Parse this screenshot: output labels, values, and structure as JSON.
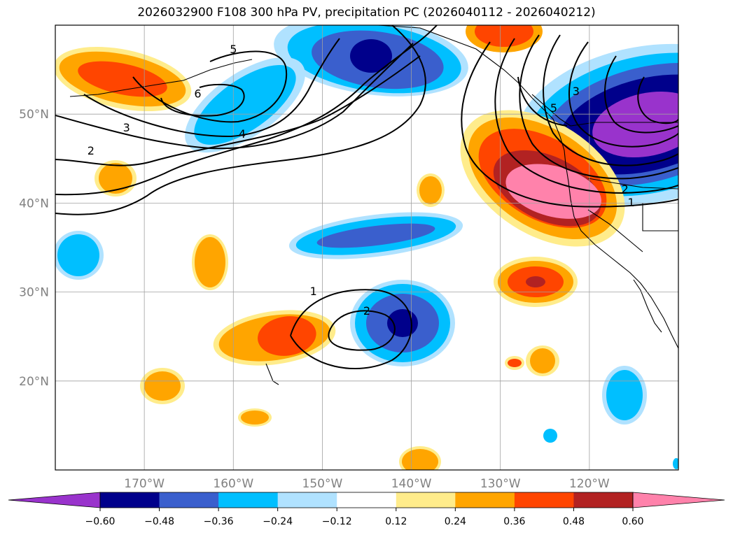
{
  "chart_data": {
    "type": "contour-map",
    "title": "2026032900 F108 300 hPa PV, precipitation PC (2026040112 - 2026040212)",
    "projection": "PlateCarree",
    "extent": {
      "lon_min": -180,
      "lon_max": -110,
      "lat_min": 10,
      "lat_max": 60
    },
    "lon_ticks": [
      {
        "lon": -170,
        "label": "170°W"
      },
      {
        "lon": -160,
        "label": "160°W"
      },
      {
        "lon": -150,
        "label": "150°W"
      },
      {
        "lon": -140,
        "label": "140°W"
      },
      {
        "lon": -130,
        "label": "130°W"
      },
      {
        "lon": -120,
        "label": "120°W"
      }
    ],
    "lat_ticks": [
      {
        "lat": 50,
        "label": "50°N"
      },
      {
        "lat": 40,
        "label": "40°N"
      },
      {
        "lat": 30,
        "label": "30°N"
      },
      {
        "lat": 20,
        "label": "20°N"
      }
    ],
    "grid": true,
    "filled_field": "precipitation PC",
    "contour_field": "300 hPa PV",
    "contour_labels": [
      {
        "text": "1",
        "lon": -151,
        "lat": 30.0
      },
      {
        "text": "2",
        "lon": -145,
        "lat": 27.8
      },
      {
        "text": "1",
        "lon": -115.3,
        "lat": 40.0
      },
      {
        "text": "2",
        "lon": -116,
        "lat": 41.5
      },
      {
        "text": "3",
        "lon": -121.5,
        "lat": 52.5
      },
      {
        "text": "5",
        "lon": -124,
        "lat": 50.6
      },
      {
        "text": "2",
        "lon": -176,
        "lat": 45.8
      },
      {
        "text": "3",
        "lon": -172,
        "lat": 48.4
      },
      {
        "text": "4",
        "lon": -159,
        "lat": 47.7
      },
      {
        "text": "5",
        "lon": -160,
        "lat": 57.2
      },
      {
        "text": "6",
        "lon": -164,
        "lat": 52.2
      }
    ],
    "colorbar": {
      "ticks": [
        "−0.60",
        "−0.48",
        "−0.36",
        "−0.24",
        "−0.12",
        "0.12",
        "0.24",
        "0.36",
        "0.48",
        "0.60"
      ],
      "colors": [
        "#9933cc",
        "#00008b",
        "#3a5fcd",
        "#00bfff",
        "#b0e2ff",
        "#ffffff",
        "#ffec8b",
        "#ffa500",
        "#ff4500",
        "#b22222",
        "#ff82ab"
      ],
      "extend": "both"
    }
  }
}
